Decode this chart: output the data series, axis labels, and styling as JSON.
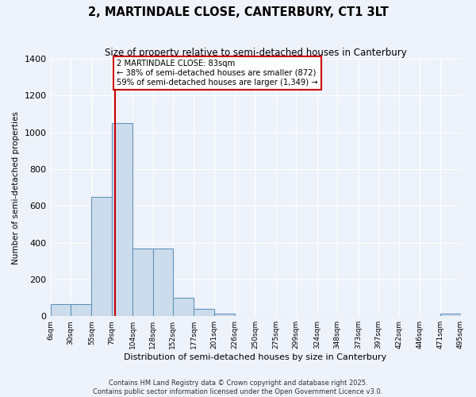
{
  "title": "2, MARTINDALE CLOSE, CANTERBURY, CT1 3LT",
  "subtitle": "Size of property relative to semi-detached houses in Canterbury",
  "xlabel": "Distribution of semi-detached houses by size in Canterbury",
  "ylabel": "Number of semi-detached properties",
  "property_size": 83,
  "pct_smaller": 38,
  "pct_larger": 59,
  "count_smaller": 872,
  "count_larger": 1349,
  "bar_color": "#cddcec",
  "bar_edge_color": "#6094bc",
  "vline_color": "#cc0000",
  "annotation_box_color": "#cc0000",
  "background_color": "#eef2fb",
  "grid_color": "#ffffff",
  "bins": [
    6,
    30,
    55,
    79,
    104,
    128,
    152,
    177,
    201,
    226,
    250,
    275,
    299,
    324,
    348,
    373,
    397,
    422,
    446,
    471,
    495
  ],
  "bin_labels": [
    "6sqm",
    "30sqm",
    "55sqm",
    "79sqm",
    "104sqm",
    "128sqm",
    "152sqm",
    "177sqm",
    "201sqm",
    "226sqm",
    "250sqm",
    "275sqm",
    "299sqm",
    "324sqm",
    "348sqm",
    "373sqm",
    "397sqm",
    "422sqm",
    "446sqm",
    "471sqm",
    "495sqm"
  ],
  "counts": [
    65,
    65,
    650,
    1050,
    370,
    370,
    100,
    40,
    15,
    0,
    0,
    0,
    0,
    0,
    0,
    0,
    0,
    0,
    0,
    15
  ],
  "ylim": [
    0,
    1400
  ],
  "yticks": [
    0,
    200,
    400,
    600,
    800,
    1000,
    1200,
    1400
  ],
  "footer_line1": "Contains HM Land Registry data © Crown copyright and database right 2025.",
  "footer_line2": "Contains public sector information licensed under the Open Government Licence v3.0."
}
